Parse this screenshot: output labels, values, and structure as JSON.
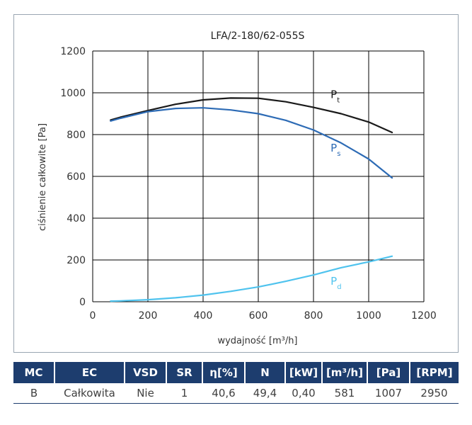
{
  "chart_data": {
    "type": "line",
    "title": "LFA/2-180/62-055S",
    "xlabel": "wydajność [m³/h]",
    "ylabel": "ciśnienie całkowite [Pa]",
    "xlim": [
      0,
      1200
    ],
    "ylim": [
      0,
      1200
    ],
    "xticks": [
      0,
      200,
      400,
      600,
      800,
      1000,
      1200
    ],
    "yticks": [
      0,
      200,
      400,
      600,
      800,
      1000,
      1200
    ],
    "grid": true,
    "series": [
      {
        "name": "P",
        "sub": "t",
        "color": "#1a1a1a",
        "points": [
          [
            65,
            870
          ],
          [
            100,
            883
          ],
          [
            200,
            915
          ],
          [
            300,
            945
          ],
          [
            400,
            966
          ],
          [
            500,
            975
          ],
          [
            600,
            974
          ],
          [
            700,
            957
          ],
          [
            800,
            930
          ],
          [
            900,
            900
          ],
          [
            1000,
            860
          ],
          [
            1085,
            810
          ]
        ],
        "label_at": [
          862,
          975
        ]
      },
      {
        "name": "P",
        "sub": "s",
        "color": "#2d6bb5",
        "points": [
          [
            65,
            865
          ],
          [
            100,
            878
          ],
          [
            200,
            910
          ],
          [
            300,
            925
          ],
          [
            400,
            928
          ],
          [
            500,
            918
          ],
          [
            600,
            900
          ],
          [
            700,
            868
          ],
          [
            800,
            822
          ],
          [
            900,
            760
          ],
          [
            1000,
            683
          ],
          [
            1085,
            593
          ]
        ],
        "label_at": [
          862,
          718
        ]
      },
      {
        "name": "P",
        "sub": "d",
        "color": "#4fc3ee",
        "points": [
          [
            65,
            3
          ],
          [
            100,
            4
          ],
          [
            200,
            10
          ],
          [
            300,
            19
          ],
          [
            400,
            32
          ],
          [
            500,
            50
          ],
          [
            600,
            71
          ],
          [
            700,
            98
          ],
          [
            800,
            128
          ],
          [
            900,
            163
          ],
          [
            1000,
            191
          ],
          [
            1085,
            218
          ]
        ],
        "label_at": [
          862,
          82
        ]
      }
    ]
  },
  "table": {
    "headers": [
      "MC",
      "EC",
      "VSD",
      "SR",
      "η[%]",
      "N",
      "[kW]",
      "[m³/h]",
      "[Pa]",
      "[RPM]"
    ],
    "row": [
      "B",
      "Całkowita",
      "Nie",
      "1",
      "40,6",
      "49,4",
      "0,40",
      "581",
      "1007",
      "2950"
    ]
  },
  "colors": {
    "header_bg": "#1d3d6e",
    "grid": "#000000"
  }
}
